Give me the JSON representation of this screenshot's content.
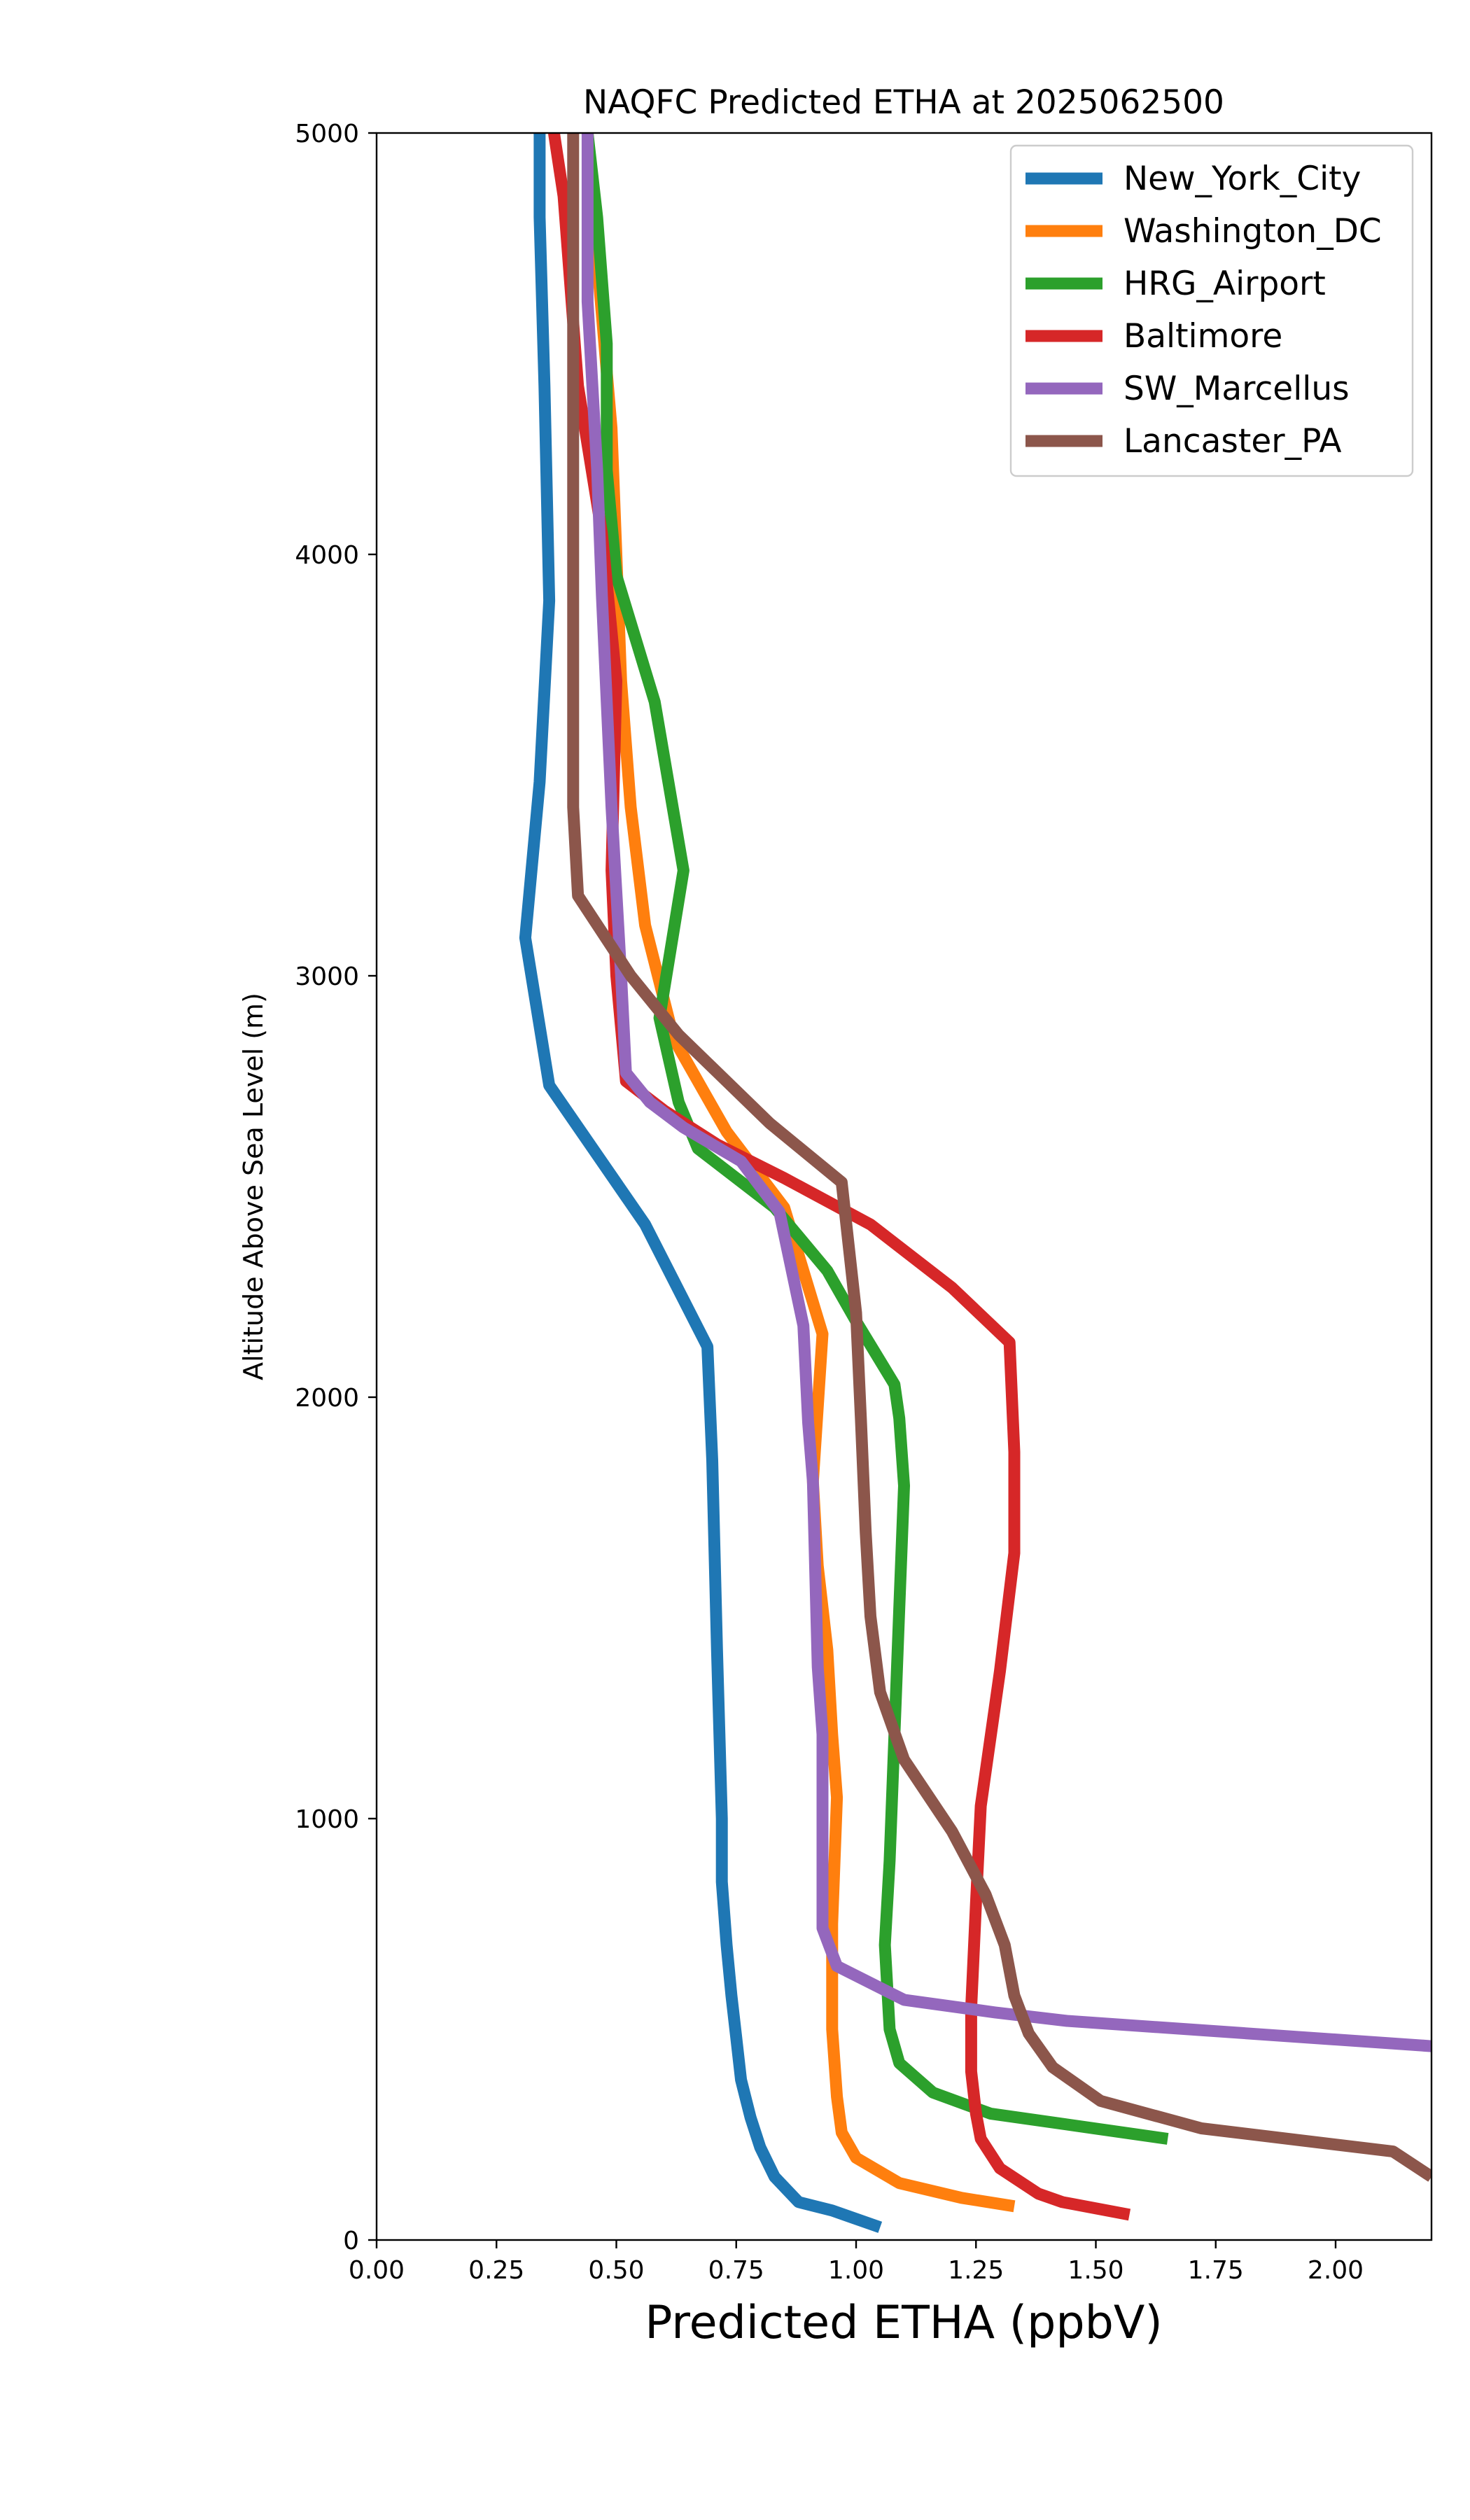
{
  "chart_data": {
    "type": "line",
    "title": "NAQFC Predicted ETHA at 2025062500",
    "xlabel": "Predicted ETHA (ppbV)",
    "ylabel": "Altitude Above Sea Level (m)",
    "xlim": [
      0,
      2.2
    ],
    "ylim": [
      0,
      5000
    ],
    "xticks": [
      "0.00",
      "0.25",
      "0.50",
      "0.75",
      "1.00",
      "1.25",
      "1.50",
      "1.75",
      "2.00"
    ],
    "yticks": [
      "0",
      "1000",
      "2000",
      "3000",
      "4000",
      "5000"
    ],
    "legend_position": "top-right",
    "grid": false,
    "series": [
      {
        "name": "New_York_City",
        "color": "#1f77b4",
        "points": [
          [
            1.05,
            30
          ],
          [
            0.95,
            70
          ],
          [
            0.88,
            90
          ],
          [
            0.83,
            150
          ],
          [
            0.8,
            220
          ],
          [
            0.78,
            290
          ],
          [
            0.76,
            380
          ],
          [
            0.75,
            480
          ],
          [
            0.74,
            580
          ],
          [
            0.73,
            700
          ],
          [
            0.72,
            850
          ],
          [
            0.72,
            1000
          ],
          [
            0.71,
            1400
          ],
          [
            0.7,
            1850
          ],
          [
            0.69,
            2120
          ],
          [
            0.56,
            2410
          ],
          [
            0.36,
            2740
          ],
          [
            0.31,
            3090
          ],
          [
            0.34,
            3460
          ],
          [
            0.36,
            3890
          ],
          [
            0.35,
            4400
          ],
          [
            0.34,
            4800
          ],
          [
            0.34,
            5000
          ]
        ]
      },
      {
        "name": "Washington_DC",
        "color": "#ff7f0e",
        "points": [
          [
            1.33,
            80
          ],
          [
            1.22,
            100
          ],
          [
            1.09,
            135
          ],
          [
            1.0,
            195
          ],
          [
            0.97,
            255
          ],
          [
            0.96,
            340
          ],
          [
            0.95,
            500
          ],
          [
            0.95,
            750
          ],
          [
            0.96,
            1050
          ],
          [
            0.95,
            1200
          ],
          [
            0.94,
            1400
          ],
          [
            0.92,
            1600
          ],
          [
            0.91,
            1800
          ],
          [
            0.93,
            2150
          ],
          [
            0.85,
            2450
          ],
          [
            0.73,
            2630
          ],
          [
            0.62,
            2850
          ],
          [
            0.56,
            3120
          ],
          [
            0.53,
            3400
          ],
          [
            0.51,
            3700
          ],
          [
            0.5,
            4000
          ],
          [
            0.49,
            4300
          ],
          [
            0.46,
            4700
          ],
          [
            0.44,
            5000
          ]
        ]
      },
      {
        "name": "HRG_Airport",
        "color": "#2ca02c",
        "points": [
          [
            1.65,
            240
          ],
          [
            1.28,
            300
          ],
          [
            1.16,
            350
          ],
          [
            1.09,
            420
          ],
          [
            1.07,
            500
          ],
          [
            1.06,
            700
          ],
          [
            1.07,
            900
          ],
          [
            1.08,
            1200
          ],
          [
            1.09,
            1500
          ],
          [
            1.1,
            1790
          ],
          [
            1.09,
            1950
          ],
          [
            1.08,
            2030
          ],
          [
            1.0,
            2180
          ],
          [
            0.94,
            2300
          ],
          [
            0.83,
            2450
          ],
          [
            0.67,
            2590
          ],
          [
            0.63,
            2700
          ],
          [
            0.59,
            2900
          ],
          [
            0.64,
            3250
          ],
          [
            0.58,
            3650
          ],
          [
            0.5,
            3950
          ],
          [
            0.48,
            4200
          ],
          [
            0.48,
            4500
          ],
          [
            0.46,
            4800
          ],
          [
            0.44,
            5000
          ]
        ]
      },
      {
        "name": "Baltimore",
        "color": "#d62728",
        "points": [
          [
            1.57,
            60
          ],
          [
            1.43,
            90
          ],
          [
            1.38,
            110
          ],
          [
            1.3,
            170
          ],
          [
            1.26,
            240
          ],
          [
            1.25,
            300
          ],
          [
            1.24,
            400
          ],
          [
            1.24,
            550
          ],
          [
            1.25,
            800
          ],
          [
            1.26,
            1030
          ],
          [
            1.3,
            1350
          ],
          [
            1.33,
            1630
          ],
          [
            1.33,
            1870
          ],
          [
            1.32,
            2130
          ],
          [
            1.2,
            2260
          ],
          [
            1.03,
            2410
          ],
          [
            0.85,
            2520
          ],
          [
            0.71,
            2600
          ],
          [
            0.6,
            2680
          ],
          [
            0.52,
            2750
          ],
          [
            0.5,
            3000
          ],
          [
            0.49,
            3250
          ],
          [
            0.5,
            3700
          ],
          [
            0.47,
            4050
          ],
          [
            0.42,
            4400
          ],
          [
            0.39,
            4850
          ],
          [
            0.37,
            5000
          ]
        ]
      },
      {
        "name": "SW_Marcellus",
        "color": "#9467bd",
        "points": [
          [
            2.2,
            460
          ],
          [
            1.44,
            520
          ],
          [
            1.29,
            540
          ],
          [
            1.1,
            570
          ],
          [
            0.96,
            650
          ],
          [
            0.93,
            740
          ],
          [
            0.93,
            850
          ],
          [
            0.93,
            1000
          ],
          [
            0.93,
            1200
          ],
          [
            0.92,
            1360
          ],
          [
            0.91,
            1800
          ],
          [
            0.9,
            1940
          ],
          [
            0.89,
            2170
          ],
          [
            0.84,
            2440
          ],
          [
            0.76,
            2560
          ],
          [
            0.64,
            2640
          ],
          [
            0.57,
            2700
          ],
          [
            0.52,
            2770
          ],
          [
            0.51,
            3000
          ],
          [
            0.49,
            3400
          ],
          [
            0.47,
            3900
          ],
          [
            0.46,
            4200
          ],
          [
            0.44,
            4600
          ],
          [
            0.44,
            5000
          ]
        ]
      },
      {
        "name": "Lancaster_PA",
        "color": "#8c564b",
        "points": [
          [
            2.2,
            150
          ],
          [
            2.12,
            210
          ],
          [
            1.72,
            265
          ],
          [
            1.51,
            330
          ],
          [
            1.41,
            410
          ],
          [
            1.36,
            490
          ],
          [
            1.33,
            580
          ],
          [
            1.31,
            700
          ],
          [
            1.27,
            820
          ],
          [
            1.2,
            970
          ],
          [
            1.1,
            1140
          ],
          [
            1.05,
            1300
          ],
          [
            1.03,
            1480
          ],
          [
            1.02,
            1680
          ],
          [
            1.01,
            1950
          ],
          [
            1.0,
            2200
          ],
          [
            0.97,
            2510
          ],
          [
            0.82,
            2650
          ],
          [
            0.63,
            2860
          ],
          [
            0.53,
            3000
          ],
          [
            0.42,
            3190
          ],
          [
            0.41,
            3400
          ],
          [
            0.41,
            4000
          ],
          [
            0.41,
            4500
          ],
          [
            0.41,
            5000
          ]
        ]
      }
    ]
  }
}
